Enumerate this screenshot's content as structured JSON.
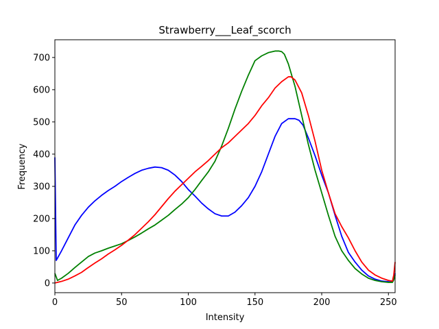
{
  "chart_data": {
    "type": "line",
    "title": "Strawberry___Leaf_scorch",
    "xlabel": "Intensity",
    "ylabel": "Frequency",
    "xlim": [
      0,
      255
    ],
    "ylim": [
      -30,
      755
    ],
    "grid": false,
    "x_ticks": [
      0,
      50,
      100,
      150,
      200,
      250
    ],
    "y_ticks": [
      0,
      100,
      200,
      300,
      400,
      500,
      600,
      700
    ],
    "series": [
      {
        "color": "#0000ff",
        "x": [
          0,
          1,
          5,
          10,
          15,
          20,
          25,
          30,
          35,
          40,
          45,
          50,
          55,
          60,
          65,
          70,
          75,
          80,
          85,
          90,
          95,
          100,
          105,
          110,
          115,
          120,
          125,
          130,
          135,
          140,
          145,
          150,
          155,
          160,
          165,
          170,
          175,
          180,
          183,
          186,
          190,
          195,
          200,
          205,
          210,
          215,
          220,
          225,
          230,
          235,
          240,
          245,
          250,
          253,
          254,
          255
        ],
        "y": [
          390,
          70,
          100,
          140,
          180,
          210,
          235,
          255,
          272,
          287,
          300,
          315,
          328,
          340,
          350,
          356,
          360,
          358,
          350,
          335,
          315,
          290,
          270,
          248,
          230,
          215,
          208,
          208,
          220,
          240,
          265,
          300,
          345,
          400,
          455,
          495,
          510,
          510,
          505,
          490,
          450,
          395,
          335,
          280,
          210,
          145,
          95,
          65,
          40,
          22,
          12,
          6,
          4,
          3,
          10,
          30
        ]
      },
      {
        "color": "#008000",
        "x": [
          0,
          2,
          5,
          10,
          15,
          20,
          25,
          30,
          35,
          40,
          45,
          50,
          55,
          60,
          65,
          70,
          75,
          80,
          85,
          90,
          95,
          100,
          105,
          110,
          115,
          120,
          125,
          130,
          135,
          140,
          145,
          150,
          155,
          160,
          165,
          168,
          170,
          172,
          175,
          180,
          185,
          190,
          195,
          200,
          205,
          210,
          215,
          220,
          225,
          230,
          235,
          240,
          245,
          250,
          253,
          254,
          255
        ],
        "y": [
          30,
          8,
          15,
          30,
          48,
          65,
          82,
          93,
          100,
          108,
          115,
          122,
          132,
          143,
          155,
          168,
          180,
          195,
          210,
          228,
          245,
          265,
          290,
          318,
          345,
          378,
          425,
          480,
          540,
          595,
          645,
          690,
          705,
          715,
          720,
          720,
          718,
          710,
          680,
          610,
          520,
          430,
          350,
          280,
          210,
          145,
          100,
          70,
          45,
          28,
          15,
          8,
          4,
          2,
          2,
          10,
          25
        ]
      },
      {
        "color": "#ff0000",
        "x": [
          0,
          5,
          10,
          15,
          20,
          25,
          30,
          35,
          40,
          45,
          50,
          55,
          60,
          65,
          70,
          75,
          80,
          85,
          90,
          95,
          100,
          105,
          110,
          115,
          120,
          125,
          130,
          135,
          140,
          145,
          150,
          155,
          160,
          165,
          170,
          175,
          177,
          180,
          185,
          190,
          195,
          200,
          205,
          210,
          215,
          220,
          225,
          230,
          235,
          240,
          245,
          250,
          253,
          254,
          255
        ],
        "y": [
          0,
          5,
          12,
          22,
          33,
          48,
          62,
          75,
          90,
          103,
          117,
          133,
          150,
          170,
          190,
          212,
          237,
          262,
          285,
          305,
          325,
          345,
          362,
          380,
          400,
          420,
          435,
          455,
          475,
          495,
          520,
          550,
          575,
          605,
          625,
          640,
          640,
          630,
          590,
          520,
          440,
          350,
          280,
          215,
          175,
          140,
          100,
          65,
          40,
          25,
          15,
          8,
          6,
          25,
          65
        ]
      }
    ]
  }
}
